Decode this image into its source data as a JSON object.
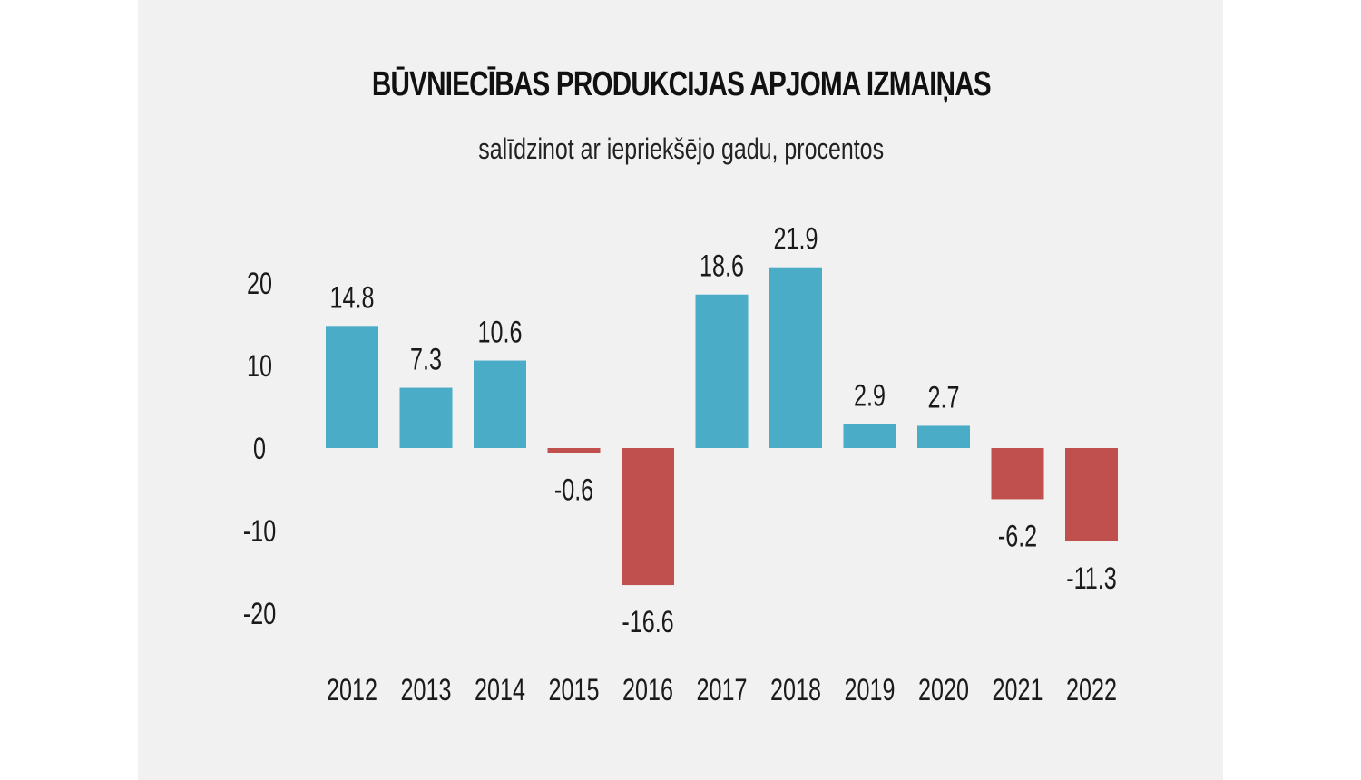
{
  "header": {
    "title": "BŪVNIECĪBAS PRODUKCIJAS APJOMA IZMAIŅAS",
    "subtitle": "salīdzinot ar iepriekšējo gadu, procentos"
  },
  "colors": {
    "positive": "#4aacc6",
    "negative": "#c0504d",
    "background": "#f1f1f1",
    "text": "#1a1a1a"
  },
  "chart_data": {
    "type": "bar",
    "title": "BŪVNIECĪBAS PRODUKCIJAS APJOMA IZMAIŅAS",
    "subtitle": "salīdzinot ar iepriekšējo gadu, procentos",
    "xlabel": "",
    "ylabel": "",
    "categories": [
      "2012",
      "2013",
      "2014",
      "2015",
      "2016",
      "2017",
      "2018",
      "2019",
      "2020",
      "2021",
      "2022"
    ],
    "values": [
      14.8,
      7.3,
      10.6,
      -0.6,
      -16.6,
      18.6,
      21.9,
      2.9,
      2.7,
      -6.2,
      -11.3
    ],
    "value_labels": [
      "14.8",
      "7.3",
      "10.6",
      "-0.6",
      "-16.6",
      "18.6",
      "21.9",
      "2.9",
      "2.7",
      "-6.2",
      "-11.3"
    ],
    "yticks": [
      20,
      10,
      0,
      -10,
      -20
    ],
    "ylim": [
      -25,
      25
    ],
    "grid": false,
    "legend": "none"
  }
}
